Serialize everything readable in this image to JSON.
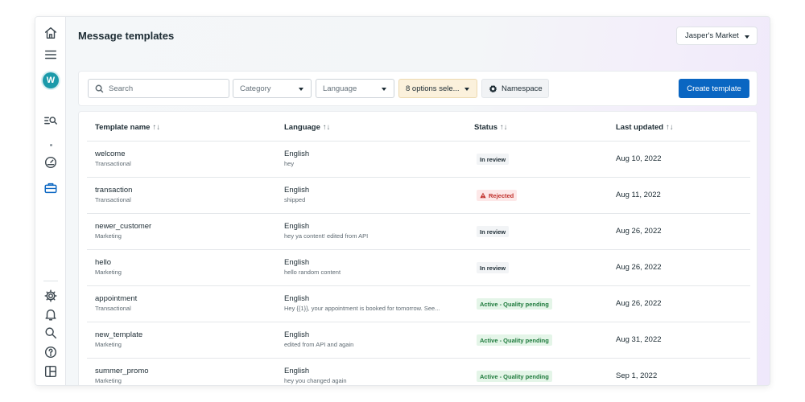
{
  "header": {
    "title": "Message templates",
    "account_name": "Jasper's Market"
  },
  "sidebar": {
    "avatar_letter": "W",
    "icons_top": [
      "home-icon",
      "menu-icon"
    ],
    "icons_mid": [
      "list-search-icon",
      "gauge-icon",
      "briefcase-icon"
    ],
    "icons_bottom": [
      "gear-icon",
      "bell-icon",
      "search-icon",
      "help-icon",
      "panels-icon"
    ],
    "active": "briefcase-icon"
  },
  "toolbar": {
    "search_placeholder": "Search",
    "category_label": "Category",
    "language_label": "Language",
    "status_filter_label": "8 options sele...",
    "namespace_label": "Namespace",
    "create_label": "Create template"
  },
  "table": {
    "headers": {
      "name": "Template name",
      "language": "Language",
      "status": "Status",
      "updated": "Last updated",
      "sort_glyph": "↑↓"
    },
    "rows": [
      {
        "name": "welcome",
        "category": "Transactional",
        "language": "English",
        "content": "hey",
        "status": "In review",
        "status_type": "review",
        "date": "Aug 10, 2022"
      },
      {
        "name": "transaction",
        "category": "Transactional",
        "language": "English",
        "content": "shipped",
        "status": "Rejected",
        "status_type": "rejected",
        "date": "Aug 11, 2022"
      },
      {
        "name": "newer_customer",
        "category": "Marketing",
        "language": "English",
        "content": "hey ya content! edited from API",
        "status": "In review",
        "status_type": "review",
        "date": "Aug 26, 2022"
      },
      {
        "name": "hello",
        "category": "Marketing",
        "language": "English",
        "content": "hello random content",
        "status": "In review",
        "status_type": "review",
        "date": "Aug 26, 2022"
      },
      {
        "name": "appointment",
        "category": "Transactional",
        "language": "English",
        "content": "Hey {{1}}, your appointment is booked for tomorrow. See...",
        "status": "Active - Quality pending",
        "status_type": "active",
        "date": "Aug 26, 2022"
      },
      {
        "name": "new_template",
        "category": "Marketing",
        "language": "English",
        "content": "edited from API and again",
        "status": "Active - Quality pending",
        "status_type": "active",
        "date": "Aug 31, 2022"
      },
      {
        "name": "summer_promo",
        "category": "Marketing",
        "language": "English",
        "content": "hey you changed again",
        "status": "Active - Quality pending",
        "status_type": "active",
        "date": "Sep 1, 2022"
      }
    ]
  },
  "colors": {
    "primary": "#0a66c2",
    "avatar": "#1b9aaa",
    "rejected": "#c0302b",
    "active": "#1e7a3c"
  }
}
